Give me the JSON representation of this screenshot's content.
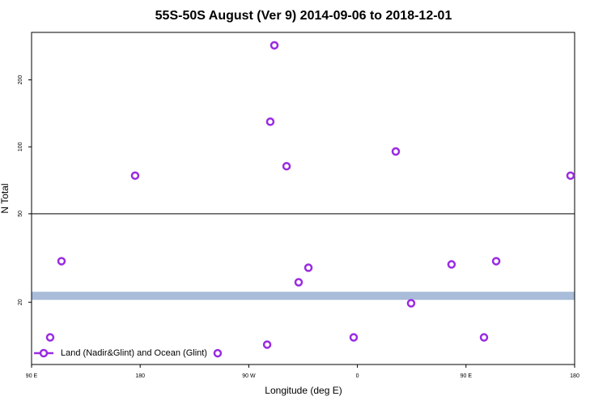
{
  "chart_data": {
    "type": "scatter",
    "title": "55S-50S August (Ver 9)   2014-09-06 to 2018-12-01",
    "xlabel": "Longitude (deg E)",
    "ylabel": "N Total",
    "log_y": true,
    "xlim": [
      90,
      540
    ],
    "xticks": [
      {
        "value": 90,
        "label": "90 E"
      },
      180,
      {
        "value": 270,
        "label": "90 W"
      },
      {
        "value": 360,
        "label": "0"
      },
      {
        "value": 450,
        "label": "90 E"
      },
      {
        "value": 540,
        "label": "180"
      }
    ],
    "ylim": [
      10.5,
      327
    ],
    "yticks": [
      20,
      50,
      100,
      200
    ],
    "hline": 50,
    "band": [
      20.5,
      22.3
    ],
    "band_color": "#a9bcd9",
    "legend": "bottom-left",
    "series": [
      {
        "name": "Land (Nadir&Glint) and Ocean (Glint)",
        "color": "#9a2be2",
        "x": [
          105.4,
          114.8,
          175.8,
          244.2,
          285.2,
          287.8,
          291.2,
          301.3,
          311.3,
          319.4,
          356.9,
          391.8,
          404.5,
          438.0,
          464.9,
          475.0,
          536.6
        ],
        "values": [
          13.9,
          30.6,
          74.2,
          11.8,
          12.9,
          129.7,
          286,
          81.8,
          24.6,
          28.6,
          13.9,
          95.3,
          19.8,
          29.6,
          13.9,
          30.6,
          74.2
        ]
      }
    ]
  }
}
